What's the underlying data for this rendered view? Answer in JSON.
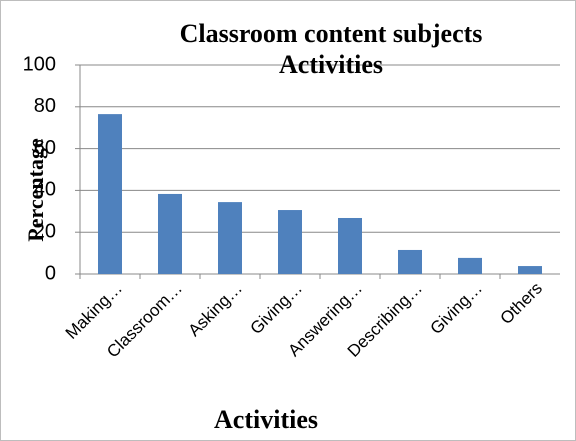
{
  "chart_data": {
    "type": "bar",
    "title": "Classroom content subjects Activities",
    "x_label": "Activities",
    "y_label": "Percentage",
    "categories": [
      "Making…",
      "Classroom…",
      "Asking…",
      "Giving…",
      "Answering…",
      "Describing…",
      "Giving…",
      "Others"
    ],
    "values": [
      76.5,
      38.3,
      34.4,
      30.6,
      26.8,
      11.5,
      7.7,
      3.8
    ],
    "color": "#4f81bd",
    "ylim": [
      0,
      100
    ],
    "yticks": [
      0,
      20,
      40,
      60,
      80,
      100
    ],
    "grid": true
  }
}
